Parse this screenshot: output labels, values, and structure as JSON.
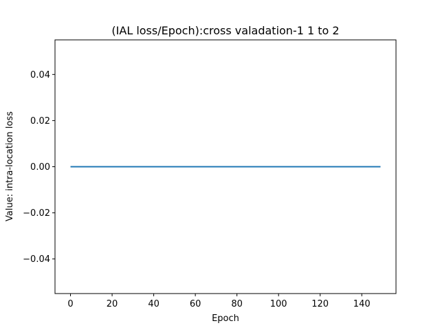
{
  "chart_data": {
    "type": "line",
    "title": "(IAL loss/Epoch):cross valadation-1 1 to 2",
    "xlabel": "Epoch",
    "ylabel": "Value: intra-location loss",
    "xlim": [
      -7.45,
      156.45
    ],
    "ylim": [
      -0.055,
      0.055
    ],
    "x_ticks": [
      0,
      20,
      40,
      60,
      80,
      100,
      120,
      140
    ],
    "y_ticks": [
      -0.04,
      -0.02,
      0.0,
      0.02,
      0.04
    ],
    "x_tick_labels": [
      "0",
      "20",
      "40",
      "60",
      "80",
      "100",
      "120",
      "140"
    ],
    "y_tick_labels": [
      "−0.04",
      "−0.02",
      "0.00",
      "0.02",
      "0.04"
    ],
    "grid": false,
    "series": [
      {
        "color": "#1f77b4",
        "x": [
          0,
          149
        ],
        "y": [
          0.0,
          0.0
        ]
      }
    ]
  }
}
